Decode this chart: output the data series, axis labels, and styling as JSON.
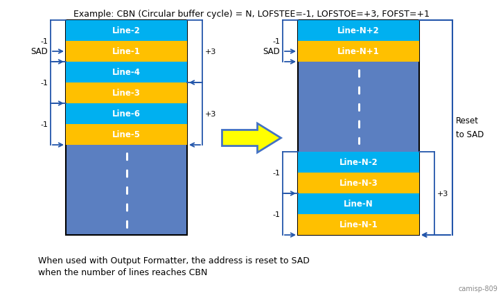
{
  "title": "Example: CBN (Circular buffer cycle) = N, LOFSTEE=-1, LOFSTOE=+3, FOFST=+1",
  "footer_text1": "When used with Output Formatter, the address is reset to SAD",
  "footer_text2": "when the number of lines reaches CBN",
  "watermark": "camisp-809",
  "bg_color": "#ffffff",
  "blue_dark": "#5B7FC1",
  "cyan": "#00B0F0",
  "orange": "#FFC000",
  "arrow_color": "#2255AA",
  "left_lines": [
    "Line-2",
    "Line-1",
    "Line-4",
    "Line-3",
    "Line-6",
    "Line-5"
  ],
  "left_colors": [
    "cyan",
    "orange",
    "cyan",
    "orange",
    "cyan",
    "orange"
  ],
  "right_top_lines": [
    "Line-N+2",
    "Line-N+1"
  ],
  "right_top_colors": [
    "cyan",
    "orange"
  ],
  "right_bot_lines": [
    "Line-N-2",
    "Line-N-3",
    "Line-N",
    "Line-N-1"
  ],
  "right_bot_colors": [
    "cyan",
    "orange",
    "cyan",
    "orange"
  ]
}
